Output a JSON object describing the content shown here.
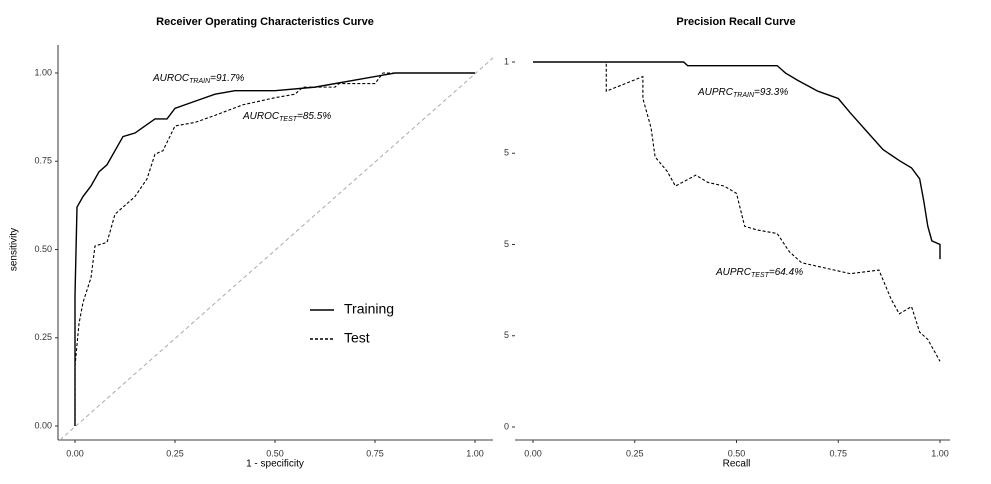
{
  "chart_data": [
    {
      "type": "line",
      "title": "Receiver Operating Characteristics Curve",
      "xlabel": "1 - specificity",
      "ylabel": "sensitivity",
      "xlim": [
        0,
        1
      ],
      "ylim": [
        0,
        1
      ],
      "xticks": [
        {
          "value": 0,
          "label": "0.00"
        },
        {
          "value": 0.25,
          "label": "0.25"
        },
        {
          "value": 0.5,
          "label": "0.50"
        },
        {
          "value": 0.75,
          "label": "0.75"
        },
        {
          "value": 1,
          "label": "1.00"
        }
      ],
      "yticks": [
        {
          "value": 0,
          "label": "0.00"
        },
        {
          "value": 0.25,
          "label": "0.25"
        },
        {
          "value": 0.5,
          "label": "0.50"
        },
        {
          "value": 0.75,
          "label": "0.75"
        },
        {
          "value": 1,
          "label": "1.00"
        }
      ],
      "reference_diagonal": true,
      "legend": "bottom-right",
      "series": [
        {
          "name": "Training",
          "color": "#000000",
          "dash": "solid",
          "x": [
            0,
            0,
            0.005,
            0.02,
            0.04,
            0.06,
            0.08,
            0.1,
            0.12,
            0.15,
            0.2,
            0.23,
            0.25,
            0.3,
            0.35,
            0.4,
            0.5,
            0.6,
            0.7,
            0.8,
            1
          ],
          "values": [
            0,
            0.37,
            0.62,
            0.65,
            0.68,
            0.72,
            0.74,
            0.78,
            0.82,
            0.83,
            0.87,
            0.87,
            0.9,
            0.92,
            0.94,
            0.95,
            0.95,
            0.96,
            0.98,
            1,
            1
          ]
        },
        {
          "name": "Test",
          "color": "#000000",
          "dash": "dotted",
          "x": [
            0,
            0,
            0.01,
            0.02,
            0.04,
            0.05,
            0.08,
            0.1,
            0.13,
            0.15,
            0.18,
            0.2,
            0.22,
            0.25,
            0.3,
            0.35,
            0.42,
            0.5,
            0.55,
            0.57,
            0.65,
            0.66,
            0.75,
            0.77,
            1
          ],
          "values": [
            0,
            0.17,
            0.29,
            0.35,
            0.42,
            0.51,
            0.52,
            0.6,
            0.63,
            0.65,
            0.7,
            0.77,
            0.78,
            0.85,
            0.86,
            0.88,
            0.91,
            0.93,
            0.94,
            0.96,
            0.96,
            0.97,
            0.97,
            1,
            1
          ]
        }
      ],
      "annotations": [
        {
          "label": "AUROC",
          "subscript": "TRAIN",
          "suffix": "=91.7%"
        },
        {
          "label": "AUROC",
          "subscript": "TEST",
          "suffix": "=85.5%"
        }
      ]
    },
    {
      "type": "line",
      "title": "Precision Recall Curve",
      "xlabel": "Recall",
      "xlim": [
        0,
        1
      ],
      "ylim": [
        0,
        1
      ],
      "xticks": [
        {
          "value": 0,
          "label": "0.00"
        },
        {
          "value": 0.25,
          "label": "0.25"
        },
        {
          "value": 0.5,
          "label": "0.50"
        },
        {
          "value": 0.75,
          "label": "0.75"
        },
        {
          "value": 1,
          "label": "1.00"
        }
      ],
      "yticks": [
        0,
        {
          "value": 0.25,
          "label": "5"
        },
        {
          "value": 0.5,
          "label": "5"
        },
        {
          "value": 0.75,
          "label": "5"
        },
        1
      ],
      "series": [
        {
          "name": "Training",
          "color": "#000000",
          "dash": "solid",
          "x": [
            0,
            0.37,
            0.38,
            0.6,
            0.62,
            0.65,
            0.7,
            0.75,
            0.78,
            0.82,
            0.86,
            0.9,
            0.93,
            0.95,
            0.96,
            0.97,
            0.98,
            1,
            1
          ],
          "values": [
            1,
            1,
            0.99,
            0.99,
            0.97,
            0.95,
            0.92,
            0.9,
            0.86,
            0.81,
            0.76,
            0.73,
            0.71,
            0.68,
            0.62,
            0.55,
            0.51,
            0.5,
            0.46
          ]
        },
        {
          "name": "Test",
          "color": "#000000",
          "dash": "dotted",
          "x": [
            0,
            0.18,
            0.18,
            0.27,
            0.27,
            0.29,
            0.3,
            0.33,
            0.35,
            0.4,
            0.43,
            0.47,
            0.5,
            0.52,
            0.55,
            0.6,
            0.63,
            0.66,
            0.7,
            0.78,
            0.85,
            0.88,
            0.9,
            0.93,
            0.95,
            0.97,
            0.99,
            1
          ],
          "values": [
            1,
            1,
            0.92,
            0.96,
            0.9,
            0.82,
            0.74,
            0.7,
            0.66,
            0.69,
            0.67,
            0.66,
            0.64,
            0.55,
            0.54,
            0.53,
            0.48,
            0.45,
            0.44,
            0.42,
            0.43,
            0.35,
            0.31,
            0.33,
            0.26,
            0.24,
            0.2,
            0.18
          ]
        }
      ],
      "annotations": [
        {
          "label": "AUPRC",
          "subscript": "TRAIN",
          "suffix": "=93.3%"
        },
        {
          "label": "AUPRC",
          "subscript": "TEST",
          "suffix": "=64.4%"
        }
      ]
    }
  ]
}
